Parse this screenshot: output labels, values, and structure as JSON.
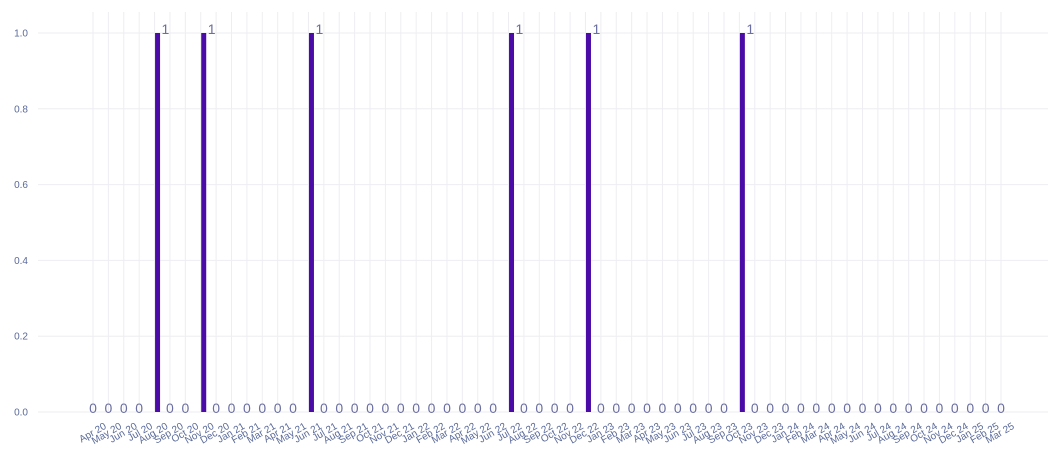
{
  "chart_data": {
    "type": "bar",
    "title": "",
    "xlabel": "",
    "ylabel": "",
    "ylim": [
      0,
      1
    ],
    "yticks": [
      "0.0",
      "0.2",
      "0.4",
      "0.6",
      "0.8",
      "1.0"
    ],
    "grid": true,
    "bar_color": "#4a0ba6",
    "categories": [
      "Apr 20",
      "May 20",
      "Jun 20",
      "Jul 20",
      "Aug 20",
      "Sep 20",
      "Oct 20",
      "Nov 20",
      "Dec 20",
      "Jan 21",
      "Feb 21",
      "Mar 21",
      "Apr 21",
      "May 21",
      "Jun 21",
      "Jul 21",
      "Aug 21",
      "Sep 21",
      "Oct 21",
      "Nov 21",
      "Dec 21",
      "Jan 22",
      "Feb 22",
      "Mar 22",
      "Apr 22",
      "May 22",
      "Jun 22",
      "Jul 22",
      "Aug 22",
      "Sep 22",
      "Oct 22",
      "Nov 22",
      "Dec 22",
      "Jan 23",
      "Feb 23",
      "Mar 23",
      "Apr 23",
      "May 23",
      "Jun 23",
      "Jul 23",
      "Aug 23",
      "Sep 23",
      "Oct 23",
      "Nov 23",
      "Dec 23",
      "Jan 24",
      "Feb 24",
      "Mar 24",
      "Apr 24",
      "May 24",
      "Jun 24",
      "Jul 24",
      "Aug 24",
      "Sep 24",
      "Oct 24",
      "Nov 24",
      "Dec 24",
      "Jan 25",
      "Feb 25",
      "Mar 25"
    ],
    "values": [
      0,
      0,
      0,
      0,
      1,
      0,
      0,
      1,
      0,
      0,
      0,
      0,
      0,
      0,
      1,
      0,
      0,
      0,
      0,
      0,
      0,
      0,
      0,
      0,
      0,
      0,
      0,
      1,
      0,
      0,
      0,
      0,
      1,
      0,
      0,
      0,
      0,
      0,
      0,
      0,
      0,
      0,
      1,
      0,
      0,
      0,
      0,
      0,
      0,
      0,
      0,
      0,
      0,
      0,
      0,
      0,
      0,
      0,
      0,
      0
    ],
    "data_labels": [
      "0",
      "0",
      "0",
      "0",
      "1",
      "0",
      "0",
      "1",
      "0",
      "0",
      "0",
      "0",
      "0",
      "0",
      "1",
      "0",
      "0",
      "0",
      "0",
      "0",
      "0",
      "0",
      "0",
      "0",
      "0",
      "0",
      "0",
      "1",
      "0",
      "0",
      "0",
      "0",
      "1",
      "0",
      "0",
      "0",
      "0",
      "0",
      "0",
      "0",
      "0",
      "0",
      "1",
      "0",
      "0",
      "0",
      "0",
      "0",
      "0",
      "0",
      "0",
      "0",
      "0",
      "0",
      "0",
      "0",
      "0",
      "0",
      "0",
      "0"
    ]
  }
}
